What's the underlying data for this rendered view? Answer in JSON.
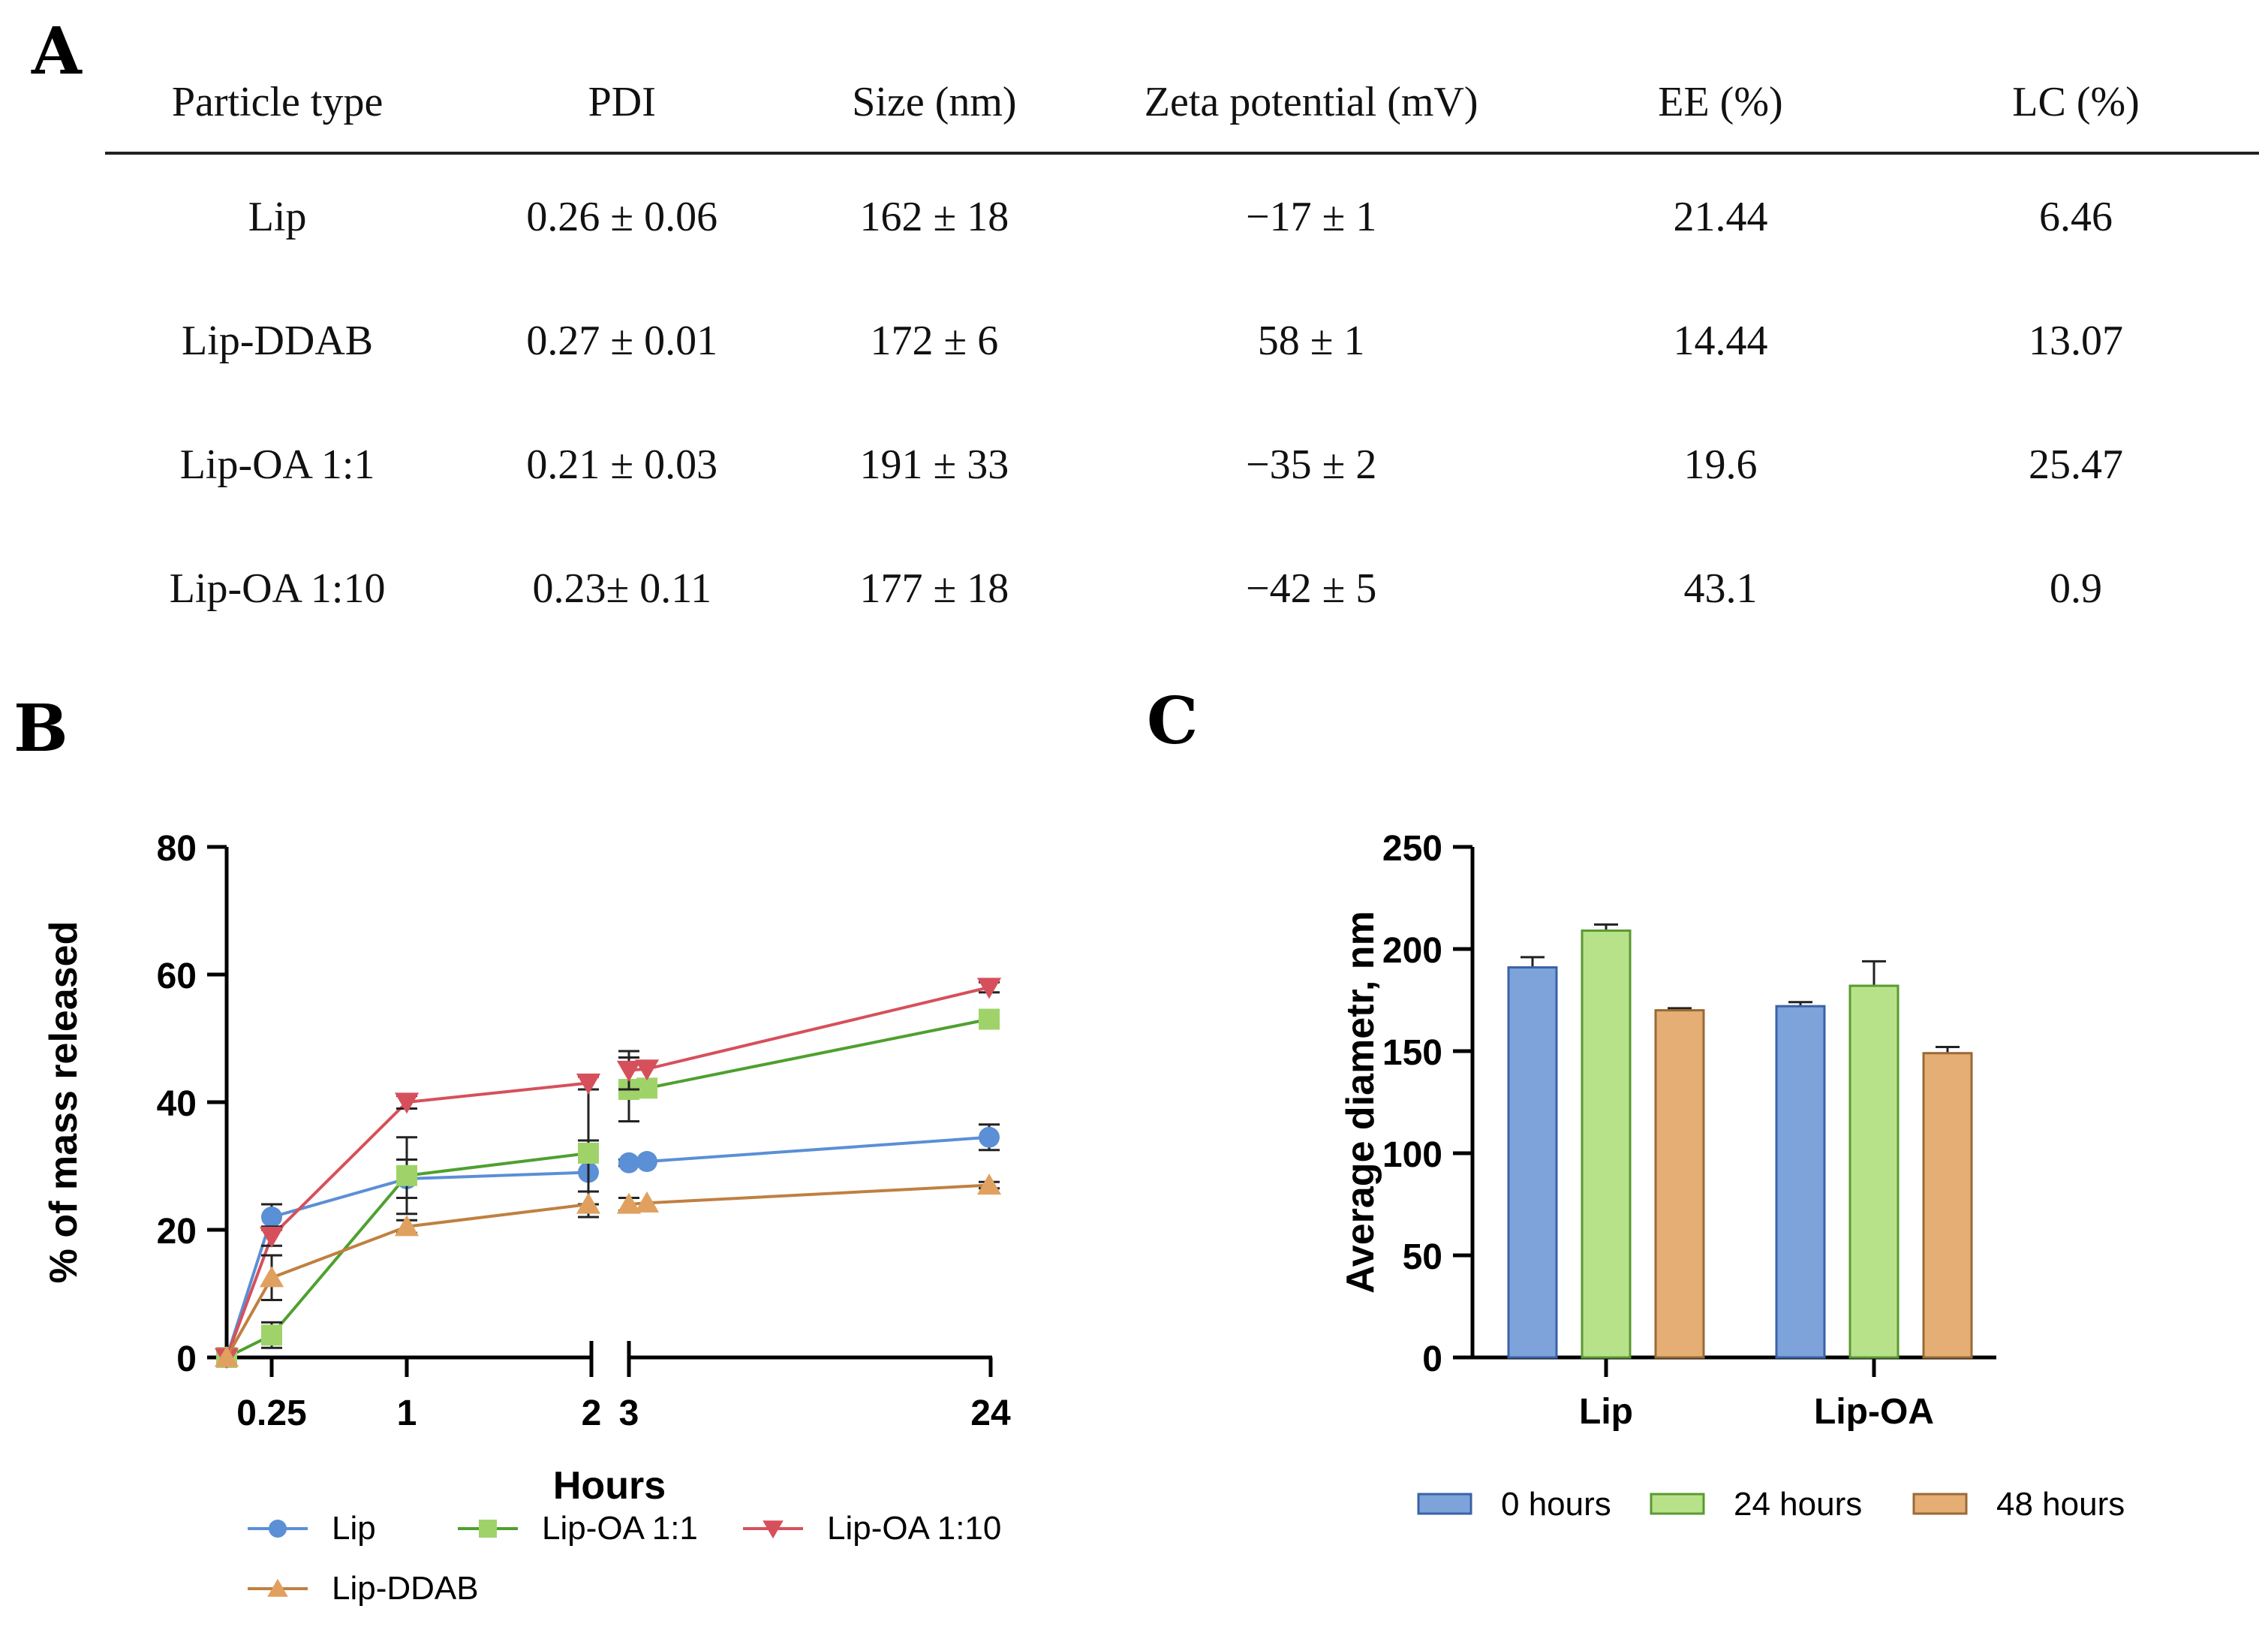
{
  "panels": {
    "a": "A",
    "b": "B",
    "c": "C"
  },
  "table": {
    "headers": [
      "Particle type",
      "PDI",
      "Size (nm)",
      "Zeta potential (mV)",
      "EE (%)",
      "LC (%)"
    ],
    "rows": [
      [
        "Lip",
        "0.26 ± 0.06",
        "162 ± 18",
        "−17 ± 1",
        "21.44",
        "6.46"
      ],
      [
        "Lip-DDAB",
        "0.27 ± 0.01",
        "172 ± 6",
        "58 ± 1",
        "14.44",
        "13.07"
      ],
      [
        "Lip-OA 1:1",
        "0.21 ± 0.03",
        "191 ± 33",
        "−35 ± 2",
        "19.6",
        "25.47"
      ],
      [
        "Lip-OA 1:10",
        "0.23± 0.11",
        "177 ± 18",
        "−42 ± 5",
        "43.1",
        "0.9"
      ]
    ]
  },
  "chart_data": [
    {
      "type": "line",
      "xlabel": "Hours",
      "ylabel": "% of mass released",
      "ylim": [
        0,
        80
      ],
      "yticks": [
        "0",
        "20",
        "40",
        "60",
        "80"
      ],
      "xticks": [
        "0.25",
        "1",
        "2",
        "3",
        "24"
      ],
      "x_segments": [
        [
          0,
          2
        ],
        [
          3,
          24
        ]
      ],
      "series": [
        {
          "name": "Lip",
          "color": "#5b8fd6",
          "marker": "circle",
          "x": [
            0,
            0.25,
            1,
            2,
            3,
            24
          ],
          "y": [
            0,
            22,
            28,
            29,
            30.5,
            34.5
          ],
          "err": [
            0,
            2,
            3,
            5,
            0.5,
            2
          ]
        },
        {
          "name": "Lip-OA 1:1",
          "color": "#4fa02f",
          "markerColor": "#9fd36a",
          "marker": "square",
          "x": [
            0,
            0.25,
            1,
            2,
            3,
            24
          ],
          "y": [
            0,
            3.5,
            28.5,
            32,
            42,
            53
          ],
          "err": [
            0,
            2,
            6,
            10,
            5,
            1
          ]
        },
        {
          "name": "Lip-OA 1:10",
          "color": "#d6505c",
          "marker": "triangle-down",
          "x": [
            0,
            0.25,
            1,
            2,
            3,
            24
          ],
          "y": [
            0,
            19,
            40,
            43,
            45,
            58
          ],
          "err": [
            0,
            1.5,
            1,
            1,
            3,
            0.8
          ]
        },
        {
          "name": "Lip-DDAB",
          "color": "#c08040",
          "markerColor": "#e0a060",
          "marker": "triangle-up",
          "x": [
            0,
            0.25,
            1,
            2,
            3,
            24
          ],
          "y": [
            0,
            12.5,
            20.5,
            24,
            24,
            27
          ],
          "err": [
            0,
            3.5,
            1,
            2,
            1,
            0.5
          ]
        }
      ],
      "legend_position": "bottom"
    },
    {
      "type": "bar",
      "ylabel": "Average diametr, nm",
      "ylim": [
        0,
        250
      ],
      "yticks": [
        "0",
        "50",
        "100",
        "150",
        "200",
        "250"
      ],
      "categories": [
        "Lip",
        "Lip-OA"
      ],
      "series": [
        {
          "name": "0 hours",
          "color": "#7ea3da",
          "edge": "#3a62a8",
          "values": [
            191,
            172
          ],
          "err": [
            5,
            2
          ]
        },
        {
          "name": "24 hours",
          "color": "#b8e28a",
          "edge": "#5a9a30",
          "values": [
            209,
            182
          ],
          "err": [
            3,
            12
          ]
        },
        {
          "name": "48 hours",
          "color": "#e4ae74",
          "edge": "#9a6a35",
          "values": [
            170,
            149
          ],
          "err": [
            1,
            3
          ]
        }
      ],
      "legend_position": "bottom"
    }
  ]
}
